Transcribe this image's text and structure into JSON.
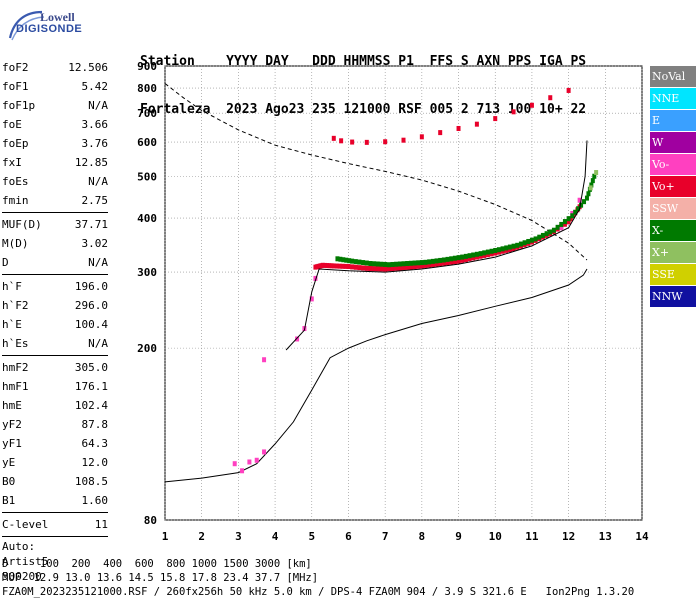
{
  "logo": {
    "line1": "Lowell",
    "line2": "DIGISONDE"
  },
  "header": {
    "row1": [
      "Station",
      "YYYY",
      "DAY",
      "DDD",
      "HHMMSS",
      "P1",
      "FFS",
      "S",
      "AXN",
      "PPS",
      "IGA",
      "PS"
    ],
    "row2": [
      "Fortaleza",
      "2023",
      "Ago23",
      "235",
      "121000",
      "RSF",
      "005",
      "2",
      "713",
      "100",
      "10+",
      "22"
    ]
  },
  "params": {
    "group1": [
      {
        "k": "foF2",
        "v": "12.506"
      },
      {
        "k": "foF1",
        "v": "5.42"
      },
      {
        "k": "foF1p",
        "v": "N/A"
      },
      {
        "k": "foE",
        "v": "3.66"
      },
      {
        "k": "foEp",
        "v": "3.76"
      },
      {
        "k": "fxI",
        "v": "12.85"
      },
      {
        "k": "foEs",
        "v": "N/A"
      },
      {
        "k": "fmin",
        "v": "2.75"
      }
    ],
    "group2": [
      {
        "k": "MUF(D)",
        "v": "37.71"
      },
      {
        "k": "M(D)",
        "v": "3.02"
      },
      {
        "k": "D",
        "v": "N/A"
      }
    ],
    "group3": [
      {
        "k": "h`F",
        "v": "196.0"
      },
      {
        "k": "h`F2",
        "v": "296.0"
      },
      {
        "k": "h`E",
        "v": "100.4"
      },
      {
        "k": "h`Es",
        "v": "N/A"
      }
    ],
    "group4": [
      {
        "k": "hmF2",
        "v": "305.0"
      },
      {
        "k": "hmF1",
        "v": "176.1"
      },
      {
        "k": "hmE",
        "v": "102.4"
      },
      {
        "k": "yF2",
        "v": "87.8"
      },
      {
        "k": "yF1",
        "v": "64.3"
      },
      {
        "k": "yE",
        "v": "12.0"
      },
      {
        "k": "B0",
        "v": "108.5"
      },
      {
        "k": "B1",
        "v": "1.60"
      }
    ],
    "group5": [
      {
        "k": "C-level",
        "v": "11"
      }
    ]
  },
  "auto": {
    "line1": "Auto:",
    "line2": "Artist5",
    "line3": "500200"
  },
  "footer": {
    "distances": "D     100  200  400  600  800 1000 1500 3000 [km]",
    "muf": "MUF  12.9 13.0 13.6 14.5 15.8 17.8 23.4 37.7 [MHz]",
    "file": "FZA0M_2023235121000.RSF / 260fx256h 50 kHz 5.0 km / DPS-4 FZA0M 904 / 3.9 S 321.6 E   Ion2Png 1.3.20"
  },
  "legend": [
    {
      "label": "NoVal",
      "color": "#808080"
    },
    {
      "label": "NNE",
      "color": "#00e5ff"
    },
    {
      "label": "E",
      "color": "#3aa0ff"
    },
    {
      "label": "W",
      "color": "#a000a0"
    },
    {
      "label": "Vo-",
      "color": "#ff40c0"
    },
    {
      "label": "Vo+",
      "color": "#e8002a"
    },
    {
      "label": "SSW",
      "color": "#f4b0a8"
    },
    {
      "label": "X-",
      "color": "#007a00"
    },
    {
      "label": "X+",
      "color": "#8fc060"
    },
    {
      "label": "SSE",
      "color": "#d0d000"
    },
    {
      "label": "NNW",
      "color": "#1010a0"
    }
  ],
  "chart_data": {
    "type": "scatter",
    "x_ticks": [
      1,
      2,
      3,
      4,
      5,
      6,
      7,
      8,
      9,
      10,
      11,
      12,
      13,
      14
    ],
    "y_ticks": [
      80,
      200,
      300,
      400,
      500,
      600,
      700,
      800,
      900
    ],
    "xlim": [
      1,
      14
    ],
    "ylim": [
      80,
      900
    ],
    "y_scale": "log",
    "grid": true,
    "colors": {
      "o_trace": "#e8002a",
      "o_trace_alt": "#ff40c0",
      "x_trace": "#007a00",
      "x_trace_alt": "#8fc060",
      "curve": "#000000"
    },
    "series": [
      {
        "kind": "o_trace",
        "points": [
          [
            5.1,
            308
          ],
          [
            5.3,
            311
          ],
          [
            5.6,
            310
          ],
          [
            6.0,
            309
          ],
          [
            6.5,
            306
          ],
          [
            7.0,
            305
          ],
          [
            7.5,
            307
          ],
          [
            8.0,
            310
          ],
          [
            8.5,
            314
          ],
          [
            9.0,
            318
          ],
          [
            9.5,
            325
          ],
          [
            10.0,
            332
          ],
          [
            10.5,
            340
          ],
          [
            11.0,
            352
          ],
          [
            11.5,
            368
          ],
          [
            12.0,
            392
          ],
          [
            12.3,
            425
          ]
        ]
      },
      {
        "kind": "o_trace_alt",
        "points": [
          [
            4.6,
            210
          ],
          [
            4.8,
            222
          ],
          [
            5.0,
            260
          ],
          [
            5.1,
            290
          ],
          [
            11.8,
            380
          ],
          [
            12.1,
            410
          ],
          [
            12.3,
            440
          ]
        ]
      },
      {
        "kind": "x_trace",
        "points": [
          [
            5.7,
            322
          ],
          [
            6.1,
            318
          ],
          [
            6.6,
            314
          ],
          [
            7.1,
            312
          ],
          [
            7.6,
            314
          ],
          [
            8.1,
            316
          ],
          [
            8.6,
            320
          ],
          [
            9.1,
            325
          ],
          [
            9.6,
            331
          ],
          [
            10.1,
            338
          ],
          [
            10.6,
            346
          ],
          [
            11.1,
            358
          ],
          [
            11.6,
            375
          ],
          [
            12.1,
            405
          ],
          [
            12.5,
            445
          ],
          [
            12.7,
            500
          ]
        ]
      },
      {
        "kind": "x_trace_alt",
        "points": [
          [
            12.6,
            470
          ],
          [
            12.75,
            510
          ]
        ]
      },
      {
        "kind": "multihop",
        "points": [
          [
            5.6,
            612
          ],
          [
            5.8,
            604
          ],
          [
            6.1,
            600
          ],
          [
            6.5,
            599
          ],
          [
            7.0,
            601
          ],
          [
            7.5,
            606
          ],
          [
            8.0,
            617
          ],
          [
            8.5,
            631
          ],
          [
            9.0,
            645
          ],
          [
            9.5,
            660
          ],
          [
            10.0,
            680
          ],
          [
            10.5,
            705
          ],
          [
            11.0,
            730
          ],
          [
            11.5,
            760
          ],
          [
            12.0,
            790
          ]
        ]
      },
      {
        "kind": "low",
        "points": [
          [
            2.9,
            108
          ],
          [
            3.1,
            104
          ],
          [
            3.3,
            109
          ],
          [
            3.5,
            110
          ],
          [
            3.7,
            115
          ],
          [
            3.7,
            188
          ]
        ]
      }
    ],
    "profile_curve": [
      [
        1.0,
        98
      ],
      [
        2.0,
        100
      ],
      [
        3.0,
        103
      ],
      [
        3.5,
        108
      ],
      [
        4.0,
        120
      ],
      [
        4.5,
        135
      ],
      [
        5.0,
        160
      ],
      [
        5.5,
        190
      ],
      [
        6.0,
        200
      ],
      [
        6.5,
        208
      ],
      [
        7.0,
        215
      ],
      [
        8.0,
        228
      ],
      [
        9.0,
        238
      ],
      [
        10.0,
        250
      ],
      [
        11.0,
        262
      ],
      [
        12.0,
        280
      ],
      [
        12.4,
        295
      ],
      [
        12.5,
        305
      ]
    ],
    "dashed_curve": [
      [
        1.0,
        820
      ],
      [
        1.5,
        760
      ],
      [
        2.0,
        710
      ],
      [
        3.0,
        640
      ],
      [
        4.0,
        590
      ],
      [
        5.0,
        560
      ],
      [
        6.0,
        535
      ],
      [
        7.0,
        513
      ],
      [
        8.0,
        490
      ],
      [
        9.0,
        462
      ],
      [
        10.0,
        430
      ],
      [
        11.0,
        395
      ],
      [
        12.0,
        350
      ],
      [
        12.5,
        320
      ]
    ],
    "fitted_trace": [
      [
        4.3,
        198
      ],
      [
        4.8,
        220
      ],
      [
        5.0,
        270
      ],
      [
        5.2,
        305
      ],
      [
        6.0,
        302
      ],
      [
        7.0,
        300
      ],
      [
        8.0,
        305
      ],
      [
        9.0,
        313
      ],
      [
        10.0,
        325
      ],
      [
        11.0,
        345
      ],
      [
        12.0,
        380
      ],
      [
        12.3,
        420
      ],
      [
        12.45,
        500
      ],
      [
        12.5,
        605
      ]
    ]
  }
}
